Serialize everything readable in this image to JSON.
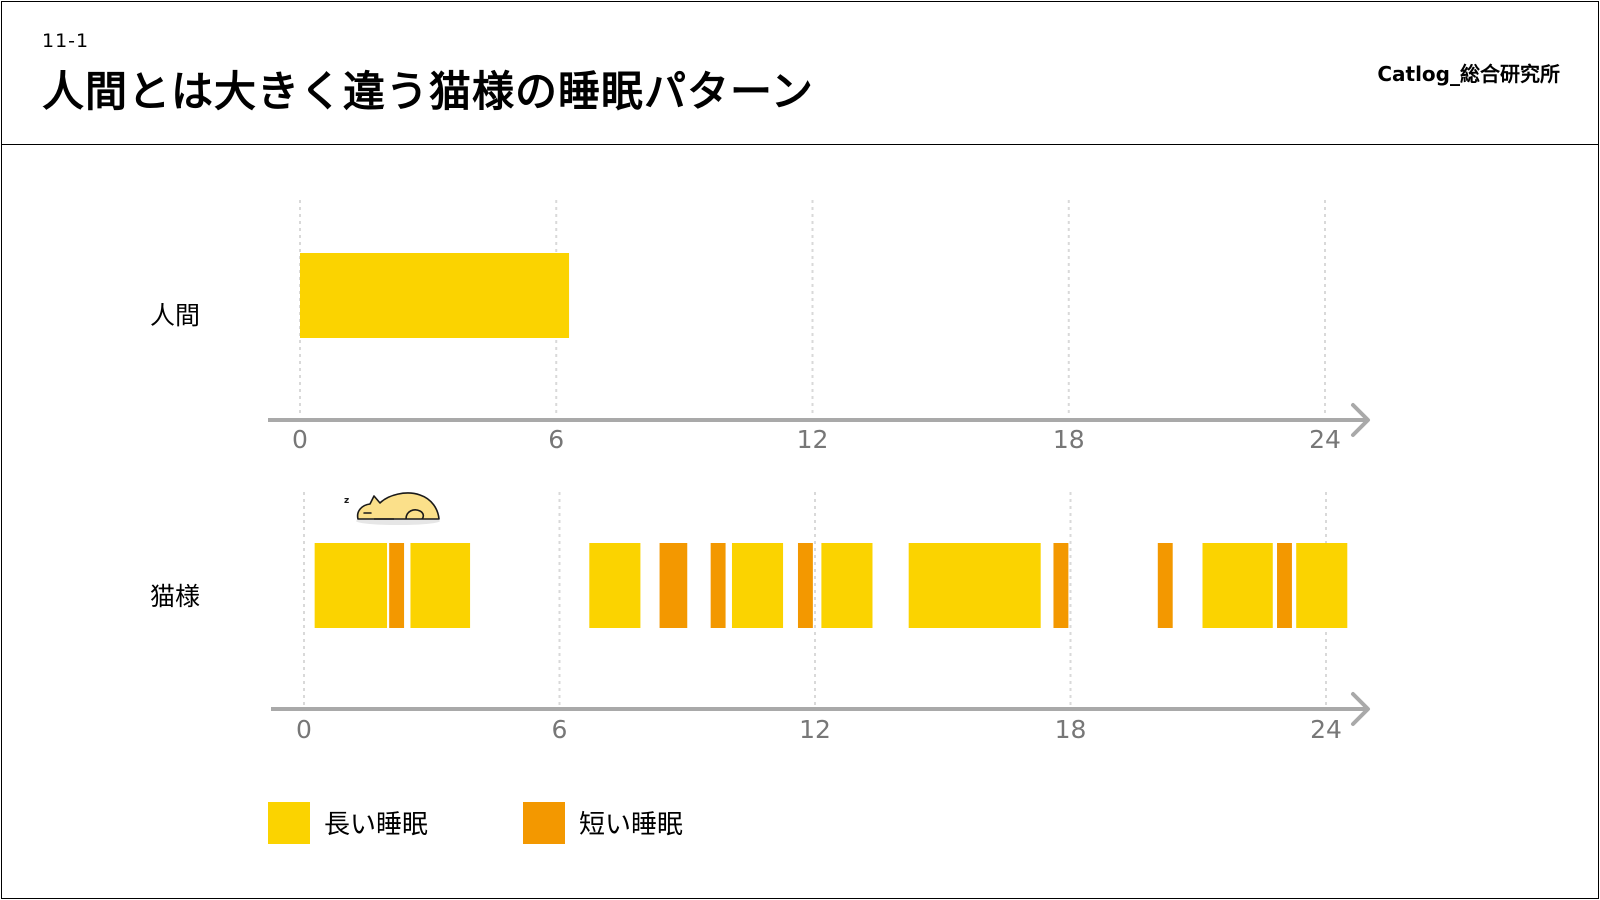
{
  "header": {
    "slide_number": "11-1",
    "title": "人間とは大きく違う猫様の睡眠パターン",
    "brand": "Catlog_総合研究所"
  },
  "colors": {
    "long_sleep": "#FBD300",
    "short_sleep": "#F39800",
    "axis": "#A9A9A9",
    "tick_text": "#777777",
    "grid": "#D9D9D9"
  },
  "chart_data": {
    "type": "bar",
    "orientation": "horizontal-timeline",
    "x_ticks": [
      0,
      6,
      12,
      18,
      24
    ],
    "xlim": [
      0,
      24
    ],
    "grid": true,
    "rows": [
      {
        "label": "人間",
        "segments": [
          {
            "start": 0,
            "end": 6.3,
            "kind": "long"
          }
        ]
      },
      {
        "label": "猫様",
        "segments": [
          {
            "start": 0.25,
            "end": 1.95,
            "kind": "long"
          },
          {
            "start": 2.0,
            "end": 2.35,
            "kind": "short"
          },
          {
            "start": 2.5,
            "end": 3.9,
            "kind": "long"
          },
          {
            "start": 6.7,
            "end": 7.9,
            "kind": "long"
          },
          {
            "start": 8.35,
            "end": 9.0,
            "kind": "short"
          },
          {
            "start": 9.55,
            "end": 9.9,
            "kind": "short"
          },
          {
            "start": 10.05,
            "end": 11.25,
            "kind": "long"
          },
          {
            "start": 11.6,
            "end": 11.95,
            "kind": "short"
          },
          {
            "start": 12.15,
            "end": 13.35,
            "kind": "long"
          },
          {
            "start": 14.2,
            "end": 17.3,
            "kind": "long"
          },
          {
            "start": 17.6,
            "end": 17.95,
            "kind": "short"
          },
          {
            "start": 20.05,
            "end": 20.4,
            "kind": "short"
          },
          {
            "start": 21.1,
            "end": 22.75,
            "kind": "long"
          },
          {
            "start": 22.85,
            "end": 23.2,
            "kind": "short"
          },
          {
            "start": 23.3,
            "end": 24.5,
            "kind": "long"
          }
        ]
      }
    ],
    "legend": [
      {
        "label": "長い睡眠",
        "kind": "long"
      },
      {
        "label": "短い睡眠",
        "kind": "short"
      }
    ],
    "annotations": [
      "sleeping-cat-icon"
    ]
  }
}
